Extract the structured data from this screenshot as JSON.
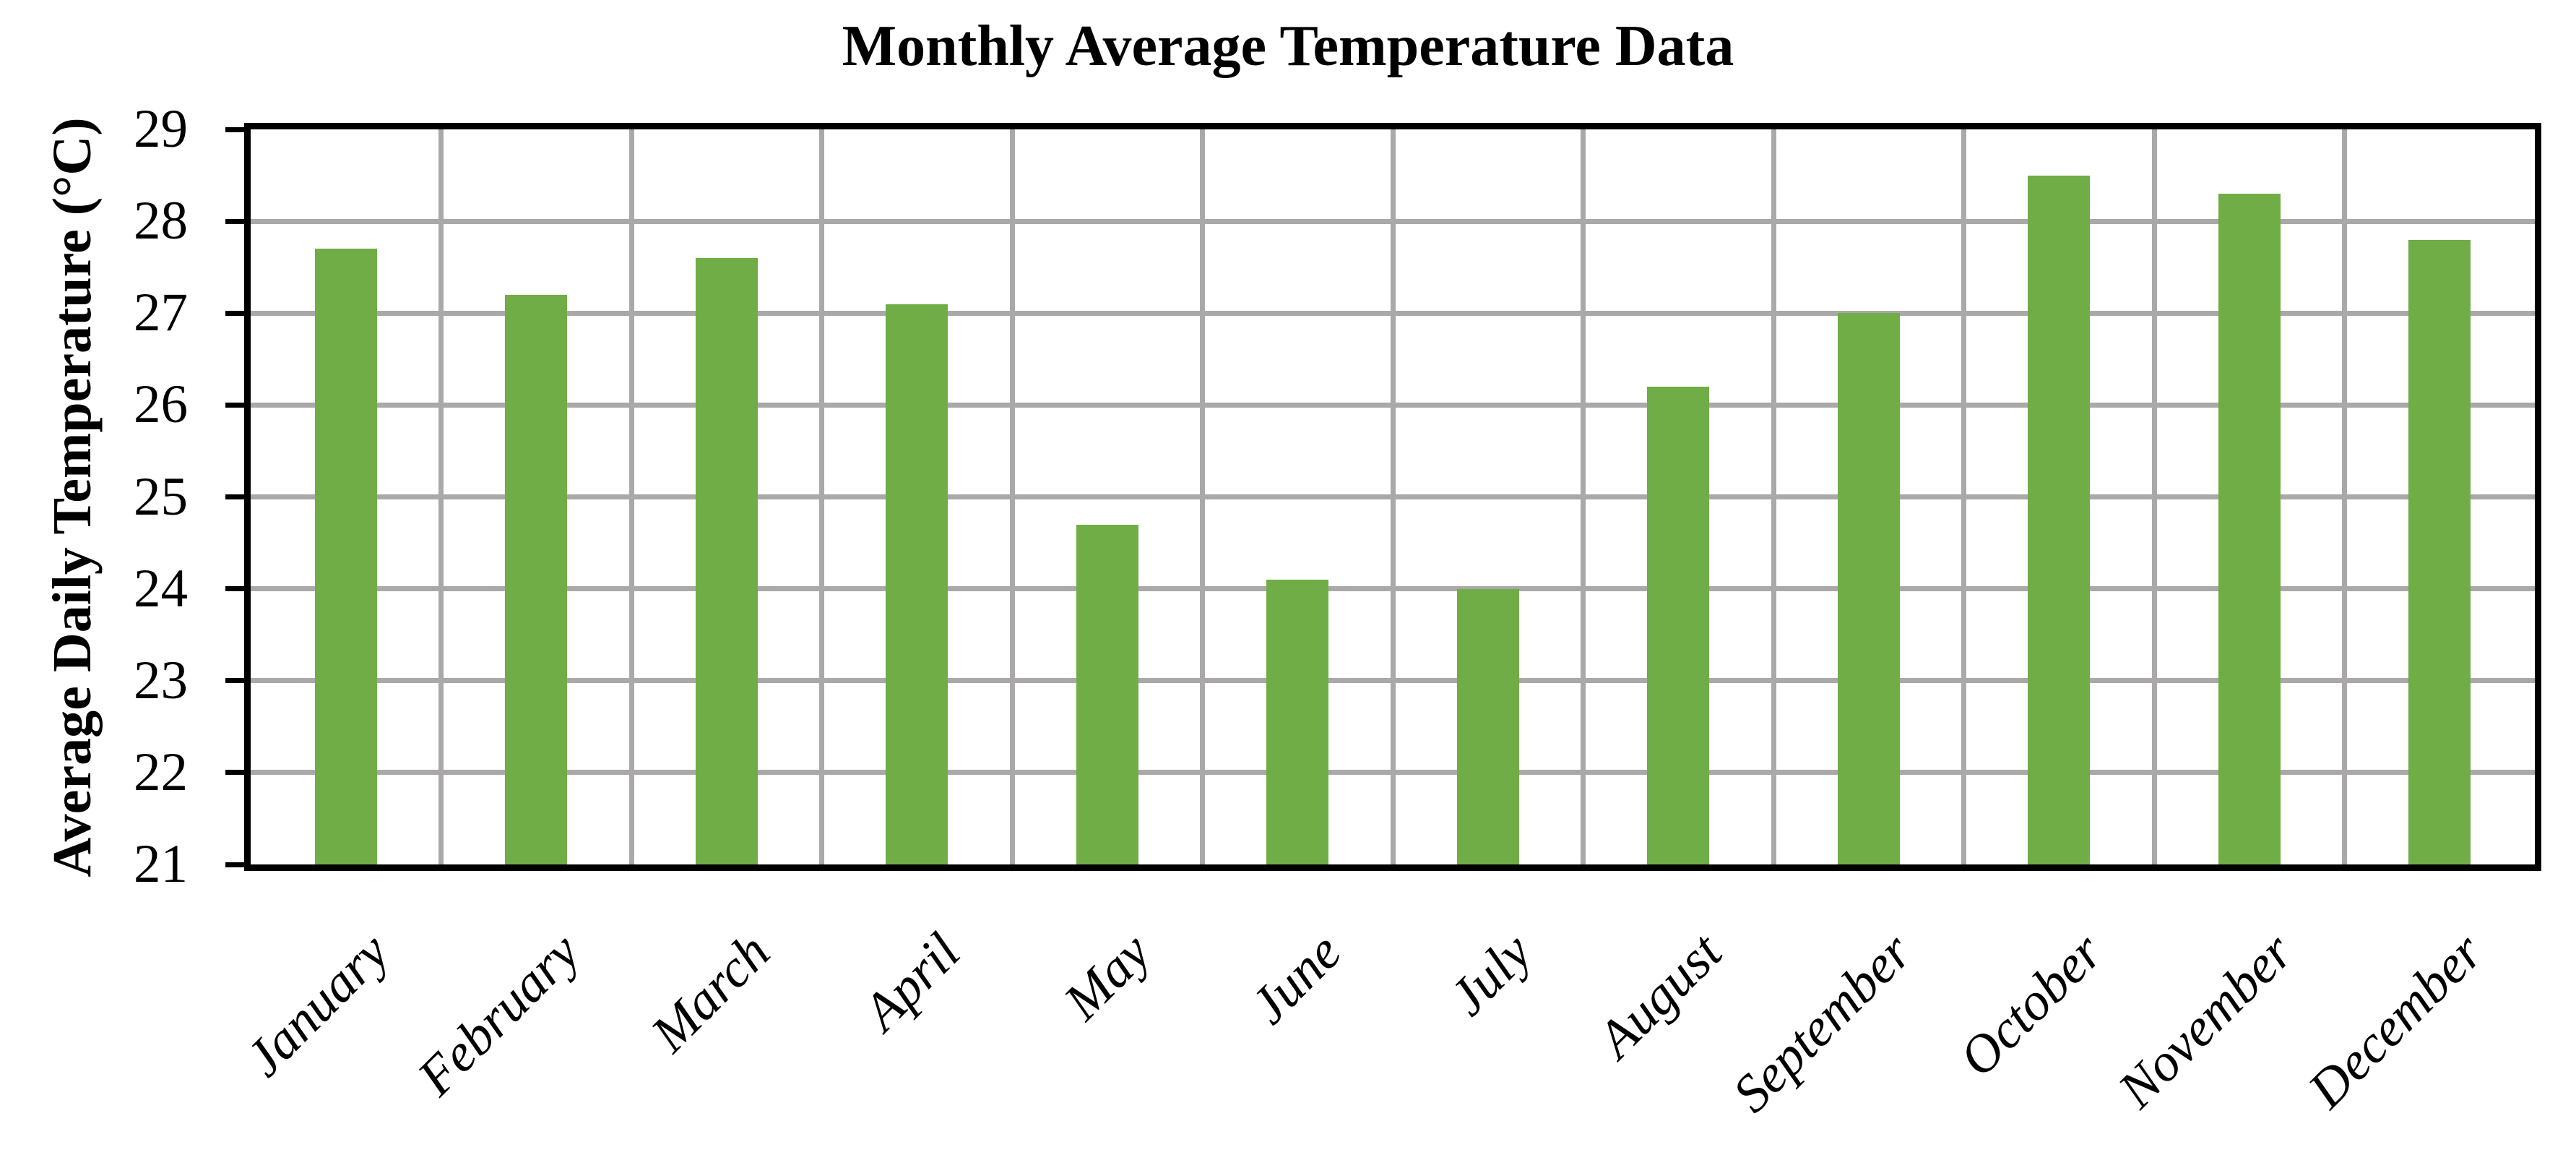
{
  "chart_data": {
    "type": "bar",
    "title": "Monthly Average Temperature Data",
    "ylabel": "Average Daily Temperature (°C)",
    "xlabel": "",
    "categories": [
      "January",
      "February",
      "March",
      "April",
      "May",
      "June",
      "July",
      "August",
      "September",
      "October",
      "November",
      "December"
    ],
    "values": [
      27.7,
      27.2,
      27.6,
      27.1,
      24.7,
      24.1,
      24.0,
      26.2,
      27.0,
      28.5,
      28.3,
      27.8
    ],
    "ylim": [
      21,
      29
    ],
    "ytick_step": 1,
    "yticks": [
      29,
      28,
      27,
      26,
      25,
      24,
      23,
      22,
      21
    ],
    "grid": true,
    "legend": false,
    "bar_color": "#70AD47",
    "gridline_color": "#AAA8A8",
    "axis_color": "#000000",
    "background": "#FFFFFF",
    "text_color": "#000000"
  }
}
